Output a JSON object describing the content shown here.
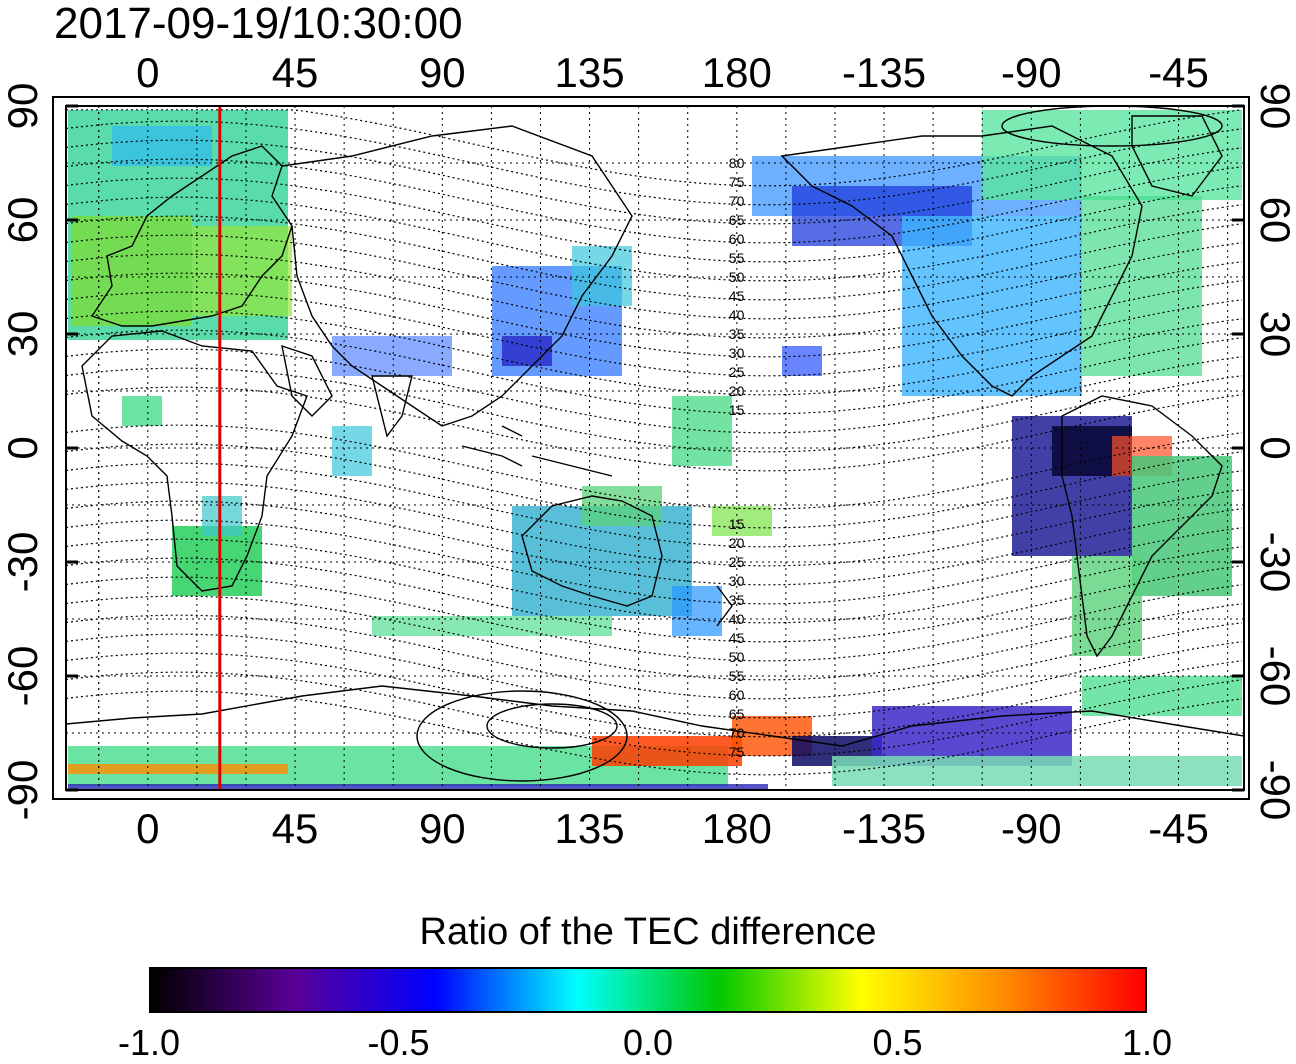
{
  "timestamp": "2017-09-19/10:30:00",
  "x_ticks": [
    "0",
    "45",
    "90",
    "135",
    "180",
    "-135",
    "-90",
    "-45"
  ],
  "y_ticks": [
    "90",
    "60",
    "30",
    "0",
    "-30",
    "-60",
    "-90"
  ],
  "contour_labels_north": [
    "80",
    "75",
    "70",
    "65",
    "60",
    "55",
    "50",
    "45",
    "40",
    "35",
    "30",
    "25",
    "20",
    "15"
  ],
  "contour_labels_south": [
    "15",
    "20",
    "25",
    "30",
    "35",
    "40",
    "45",
    "50",
    "55",
    "60",
    "65",
    "70",
    "75"
  ],
  "colorbar": {
    "title": "Ratio of the TEC difference",
    "ticks": [
      "-1.0",
      "-0.5",
      "0.0",
      "0.5",
      "1.0"
    ],
    "range": [
      -1.0,
      1.0
    ],
    "colors": [
      "#000000",
      "#5a0096",
      "#0000ff",
      "#00ffff",
      "#00c800",
      "#ffff00",
      "#ff8c00",
      "#ff0000"
    ]
  },
  "highlight_meridian_lon": 22,
  "colors": {
    "meridian": "#dd0000",
    "coast": "#000000",
    "grid": "#000000"
  }
}
